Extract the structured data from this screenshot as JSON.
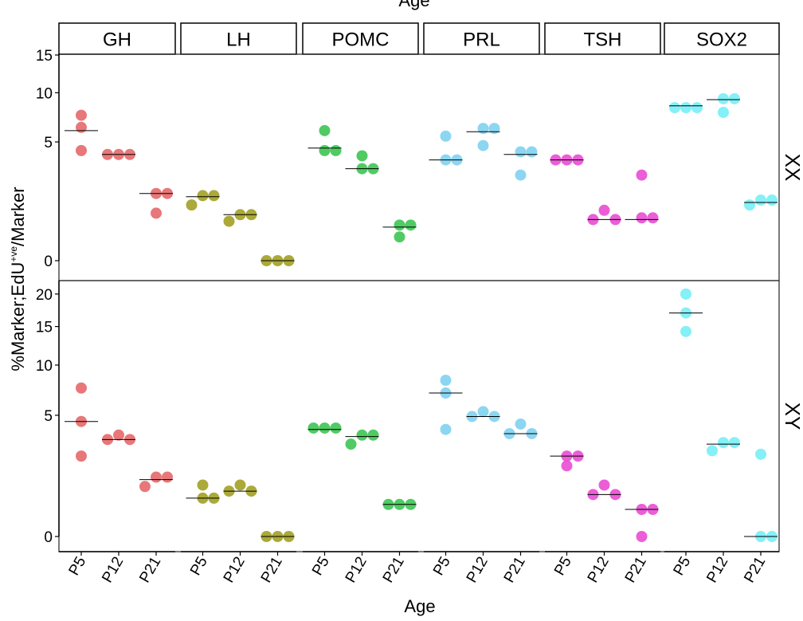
{
  "chart_data": {
    "type": "scatter",
    "title": "",
    "top_label": "Age",
    "xlabel": "Age",
    "ylabel_main": "%Marker;EdU",
    "ylabel_sup": "+ve",
    "ylabel_tail": "/Marker",
    "columns": [
      "GH",
      "LH",
      "POMC",
      "PRL",
      "TSH",
      "SOX2"
    ],
    "rows": [
      "XX",
      "XY"
    ],
    "categories": [
      "P5",
      "P12",
      "P21"
    ],
    "colors": {
      "GH": "#E5686A",
      "LH": "#A2A023",
      "POMC": "#3DC553",
      "PRL": "#7FD2F1",
      "TSH": "#E94DD4",
      "SOX2": "#77EEF6"
    },
    "y_scale": "sqrt",
    "panels_y": [
      {
        "row": "XX",
        "ylim": [
          0,
          15
        ],
        "ticks": [
          0,
          5,
          10,
          15
        ]
      },
      {
        "row": "XY",
        "ylim": [
          0,
          22
        ],
        "ticks": [
          0,
          5,
          10,
          15,
          20
        ]
      }
    ],
    "series": [
      {
        "row": "XX",
        "column": "GH",
        "points": [
          [
            7.5,
            6.3,
            4.3
          ],
          [
            4.0,
            4.0,
            4.0
          ],
          [
            1.6,
            1.6,
            0.8
          ]
        ],
        "means": [
          6.0,
          4.0,
          1.6
        ]
      },
      {
        "row": "XX",
        "column": "LH",
        "points": [
          [
            1.5,
            1.5,
            1.1
          ],
          [
            0.75,
            0.75,
            0.55
          ],
          [
            0,
            0,
            0
          ]
        ],
        "means": [
          1.45,
          0.75,
          0
        ]
      },
      {
        "row": "XX",
        "column": "POMC",
        "points": [
          [
            6.0,
            4.3,
            4.3
          ],
          [
            3.9,
            3.0,
            3.0
          ],
          [
            0.45,
            0.45,
            0.2
          ]
        ],
        "means": [
          4.5,
          3.0,
          0.4
        ]
      },
      {
        "row": "XX",
        "column": "PRL",
        "points": [
          [
            5.5,
            3.6,
            3.6
          ],
          [
            6.2,
            6.2,
            4.7
          ],
          [
            4.2,
            4.2,
            2.6
          ]
        ],
        "means": [
          3.6,
          5.9,
          4.0
        ]
      },
      {
        "row": "XX",
        "column": "TSH",
        "points": [
          [
            3.6,
            3.6,
            3.6
          ],
          [
            0.9,
            0.6,
            0.6
          ],
          [
            2.6,
            0.65,
            0.65
          ]
        ],
        "means": [
          3.6,
          0.6,
          0.6
        ]
      },
      {
        "row": "XX",
        "column": "SOX2",
        "points": [
          [
            8.3,
            8.3,
            8.3
          ],
          [
            9.3,
            9.3,
            7.8
          ],
          [
            1.3,
            1.3,
            1.1
          ]
        ],
        "means": [
          8.5,
          9.2,
          1.2
        ]
      },
      {
        "row": "XY",
        "column": "GH",
        "points": [
          [
            7.5,
            4.5,
            2.2
          ],
          [
            3.5,
            3.2,
            3.2
          ],
          [
            1.2,
            1.2,
            0.85
          ]
        ],
        "means": [
          4.5,
          3.2,
          1.1
        ]
      },
      {
        "row": "XY",
        "column": "LH",
        "points": [
          [
            0.9,
            0.5,
            0.5
          ],
          [
            0.9,
            0.7,
            0.7
          ],
          [
            0,
            0,
            0
          ]
        ],
        "means": [
          0.5,
          0.7,
          0
        ]
      },
      {
        "row": "XY",
        "column": "POMC",
        "points": [
          [
            4.0,
            4.0,
            4.0
          ],
          [
            3.5,
            3.5,
            2.9
          ],
          [
            0.35,
            0.35,
            0.35
          ]
        ],
        "means": [
          3.9,
          3.4,
          0.35
        ]
      },
      {
        "row": "XY",
        "column": "PRL",
        "points": [
          [
            8.3,
            7.0,
            3.9
          ],
          [
            5.3,
            4.9,
            4.9
          ],
          [
            4.3,
            3.6,
            3.6
          ]
        ],
        "means": [
          7.0,
          4.9,
          3.6
        ]
      },
      {
        "row": "XY",
        "column": "TSH",
        "points": [
          [
            2.2,
            2.2,
            1.7
          ],
          [
            0.9,
            0.6,
            0.6
          ],
          [
            0.25,
            0.25,
            0
          ]
        ],
        "means": [
          2.2,
          0.6,
          0.25
        ]
      },
      {
        "row": "XY",
        "column": "SOX2",
        "points": [
          [
            20.0,
            17.0,
            14.3
          ],
          [
            3.0,
            3.0,
            2.5
          ],
          [
            2.3,
            0,
            0
          ]
        ],
        "means": [
          17.0,
          2.9,
          0
        ]
      }
    ]
  }
}
